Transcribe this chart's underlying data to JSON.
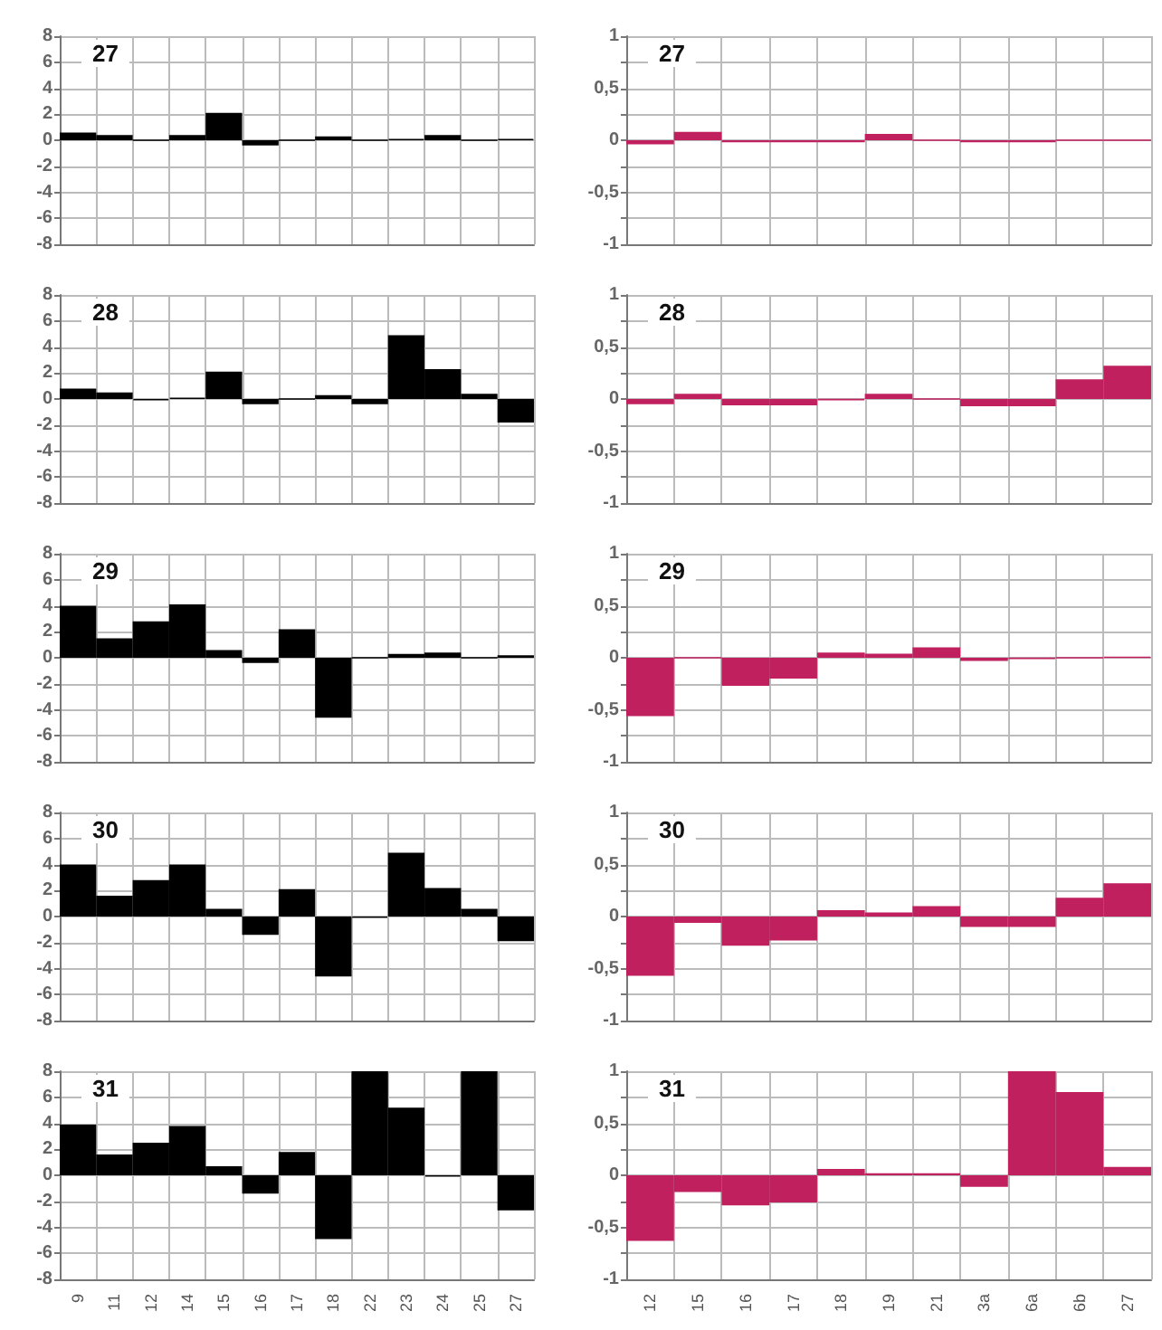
{
  "chart_data": [
    {
      "type": "bar",
      "title": "27",
      "categories": [
        null,
        null,
        null,
        null,
        null,
        null,
        null,
        null,
        null,
        null,
        null,
        null,
        null
      ],
      "series": [
        {
          "color": "#000000",
          "values": [
            0.6,
            0.4,
            0,
            0.4,
            2.1,
            -0.4,
            0,
            0.3,
            0,
            0.1,
            0.4,
            0,
            0.1
          ]
        }
      ],
      "ylim": [
        -8,
        8
      ],
      "yticks": [
        -8,
        -6,
        -4,
        -2,
        0,
        2,
        4,
        6,
        8
      ],
      "grid": true,
      "tick_labels": "y"
    },
    {
      "type": "bar",
      "title": "27",
      "categories": [
        null,
        null,
        null,
        null,
        null,
        null,
        null,
        null,
        null,
        null,
        null
      ],
      "series": [
        {
          "color": "#c0205e",
          "values": [
            -0.04,
            0.08,
            -0.02,
            -0.02,
            -0.02,
            0.06,
            0,
            -0.02,
            -0.02,
            0,
            0
          ]
        }
      ],
      "ylim": [
        -1,
        1
      ],
      "yticks": [
        -1,
        {
          "value": -0.75,
          "label": null
        },
        {
          "value": -0.5,
          "label": "-0,5"
        },
        {
          "value": -0.25,
          "label": null
        },
        0,
        {
          "value": 0.25,
          "label": null
        },
        {
          "value": 0.5,
          "label": "0,5"
        },
        {
          "value": 0.75,
          "label": null
        },
        1
      ],
      "grid": true,
      "tick_labels": "y"
    },
    {
      "type": "bar",
      "title": "28",
      "categories": [
        null,
        null,
        null,
        null,
        null,
        null,
        null,
        null,
        null,
        null,
        null,
        null,
        null
      ],
      "series": [
        {
          "color": "#000000",
          "values": [
            0.8,
            0.5,
            -0.1,
            0.1,
            2.1,
            -0.4,
            0,
            0.3,
            -0.4,
            4.9,
            2.3,
            0.4,
            -1.8
          ]
        }
      ],
      "ylim": [
        -8,
        8
      ],
      "yticks": [
        -8,
        -6,
        -4,
        -2,
        0,
        2,
        4,
        6,
        8
      ],
      "grid": true,
      "tick_labels": "y"
    },
    {
      "type": "bar",
      "title": "28",
      "categories": [
        null,
        null,
        null,
        null,
        null,
        null,
        null,
        null,
        null,
        null,
        null
      ],
      "series": [
        {
          "color": "#c0205e",
          "values": [
            -0.05,
            0.05,
            -0.06,
            -0.06,
            -0.01,
            0.05,
            0,
            -0.07,
            -0.07,
            0.19,
            0.32
          ]
        }
      ],
      "ylim": [
        -1,
        1
      ],
      "yticks": [
        -1,
        {
          "value": -0.75,
          "label": null
        },
        {
          "value": -0.5,
          "label": "-0,5"
        },
        {
          "value": -0.25,
          "label": null
        },
        0,
        {
          "value": 0.25,
          "label": null
        },
        {
          "value": 0.5,
          "label": "0,5"
        },
        {
          "value": 0.75,
          "label": null
        },
        1
      ],
      "grid": true,
      "tick_labels": "y"
    },
    {
      "type": "bar",
      "title": "29",
      "categories": [
        null,
        null,
        null,
        null,
        null,
        null,
        null,
        null,
        null,
        null,
        null,
        null,
        null
      ],
      "series": [
        {
          "color": "#000000",
          "values": [
            4.0,
            1.5,
            2.8,
            4.1,
            0.6,
            -0.4,
            2.2,
            -4.6,
            0,
            0.3,
            0.4,
            0,
            0.2
          ]
        }
      ],
      "ylim": [
        -8,
        8
      ],
      "yticks": [
        -8,
        -6,
        -4,
        -2,
        0,
        2,
        4,
        6,
        8
      ],
      "grid": true,
      "tick_labels": "y"
    },
    {
      "type": "bar",
      "title": "29",
      "categories": [
        null,
        null,
        null,
        null,
        null,
        null,
        null,
        null,
        null,
        null,
        null
      ],
      "series": [
        {
          "color": "#c0205e",
          "values": [
            -0.56,
            0,
            -0.27,
            -0.2,
            0.05,
            0.04,
            0.1,
            -0.03,
            -0.01,
            0,
            0.01
          ]
        }
      ],
      "ylim": [
        -1,
        1
      ],
      "yticks": [
        -1,
        {
          "value": -0.75,
          "label": null
        },
        {
          "value": -0.5,
          "label": "-0,5"
        },
        {
          "value": -0.25,
          "label": null
        },
        0,
        {
          "value": 0.25,
          "label": null
        },
        {
          "value": 0.5,
          "label": "0,5"
        },
        {
          "value": 0.75,
          "label": null
        },
        1
      ],
      "grid": true,
      "tick_labels": "y"
    },
    {
      "type": "bar",
      "title": "30",
      "categories": [
        null,
        null,
        null,
        null,
        null,
        null,
        null,
        null,
        null,
        null,
        null,
        null,
        null
      ],
      "series": [
        {
          "color": "#000000",
          "values": [
            4.0,
            1.6,
            2.8,
            4.0,
            0.6,
            -1.4,
            2.1,
            -4.6,
            -0.1,
            4.9,
            2.2,
            0.6,
            -1.9
          ]
        }
      ],
      "ylim": [
        -8,
        8
      ],
      "yticks": [
        -8,
        -6,
        -4,
        -2,
        0,
        2,
        4,
        6,
        8
      ],
      "grid": true,
      "tick_labels": "y"
    },
    {
      "type": "bar",
      "title": "30",
      "categories": [
        null,
        null,
        null,
        null,
        null,
        null,
        null,
        null,
        null,
        null,
        null
      ],
      "series": [
        {
          "color": "#c0205e",
          "values": [
            -0.57,
            -0.06,
            -0.28,
            -0.23,
            0.06,
            0.04,
            0.1,
            -0.1,
            -0.1,
            0.18,
            0.32
          ]
        }
      ],
      "ylim": [
        -1,
        1
      ],
      "yticks": [
        -1,
        {
          "value": -0.75,
          "label": null
        },
        {
          "value": -0.5,
          "label": "-0,5"
        },
        {
          "value": -0.25,
          "label": null
        },
        0,
        {
          "value": 0.25,
          "label": null
        },
        {
          "value": 0.5,
          "label": "0,5"
        },
        {
          "value": 0.75,
          "label": null
        },
        1
      ],
      "grid": true,
      "tick_labels": "y"
    },
    {
      "type": "bar",
      "title": "31",
      "categories": [
        "9",
        "11",
        "12",
        "14",
        "15",
        "16",
        "17",
        "18",
        "22",
        "23",
        "24",
        "25",
        "27"
      ],
      "series": [
        {
          "color": "#000000",
          "values": [
            3.9,
            1.6,
            2.5,
            3.8,
            0.7,
            -1.4,
            1.8,
            -4.9,
            8,
            5.2,
            -0.1,
            8,
            -2.7
          ]
        }
      ],
      "ylim": [
        -8,
        8
      ],
      "yticks": [
        -8,
        -6,
        -4,
        -2,
        0,
        2,
        4,
        6,
        8
      ],
      "grid": true
    },
    {
      "type": "bar",
      "title": "31",
      "categories": [
        "12",
        "15",
        "16",
        "17",
        "18",
        "19",
        "21",
        "3a",
        "6a",
        "6b",
        "27"
      ],
      "series": [
        {
          "color": "#c0205e",
          "values": [
            -0.63,
            -0.16,
            -0.29,
            -0.26,
            0.06,
            0.02,
            0.02,
            -0.11,
            1,
            0.8,
            0.08
          ]
        }
      ],
      "ylim": [
        -1,
        1
      ],
      "yticks": [
        -1,
        {
          "value": -0.75,
          "label": null
        },
        {
          "value": -0.5,
          "label": "-0,5"
        },
        {
          "value": -0.25,
          "label": null
        },
        0,
        {
          "value": 0.25,
          "label": null
        },
        {
          "value": 0.5,
          "label": "0,5"
        },
        {
          "value": 0.75,
          "label": null
        },
        1
      ],
      "grid": true
    }
  ]
}
